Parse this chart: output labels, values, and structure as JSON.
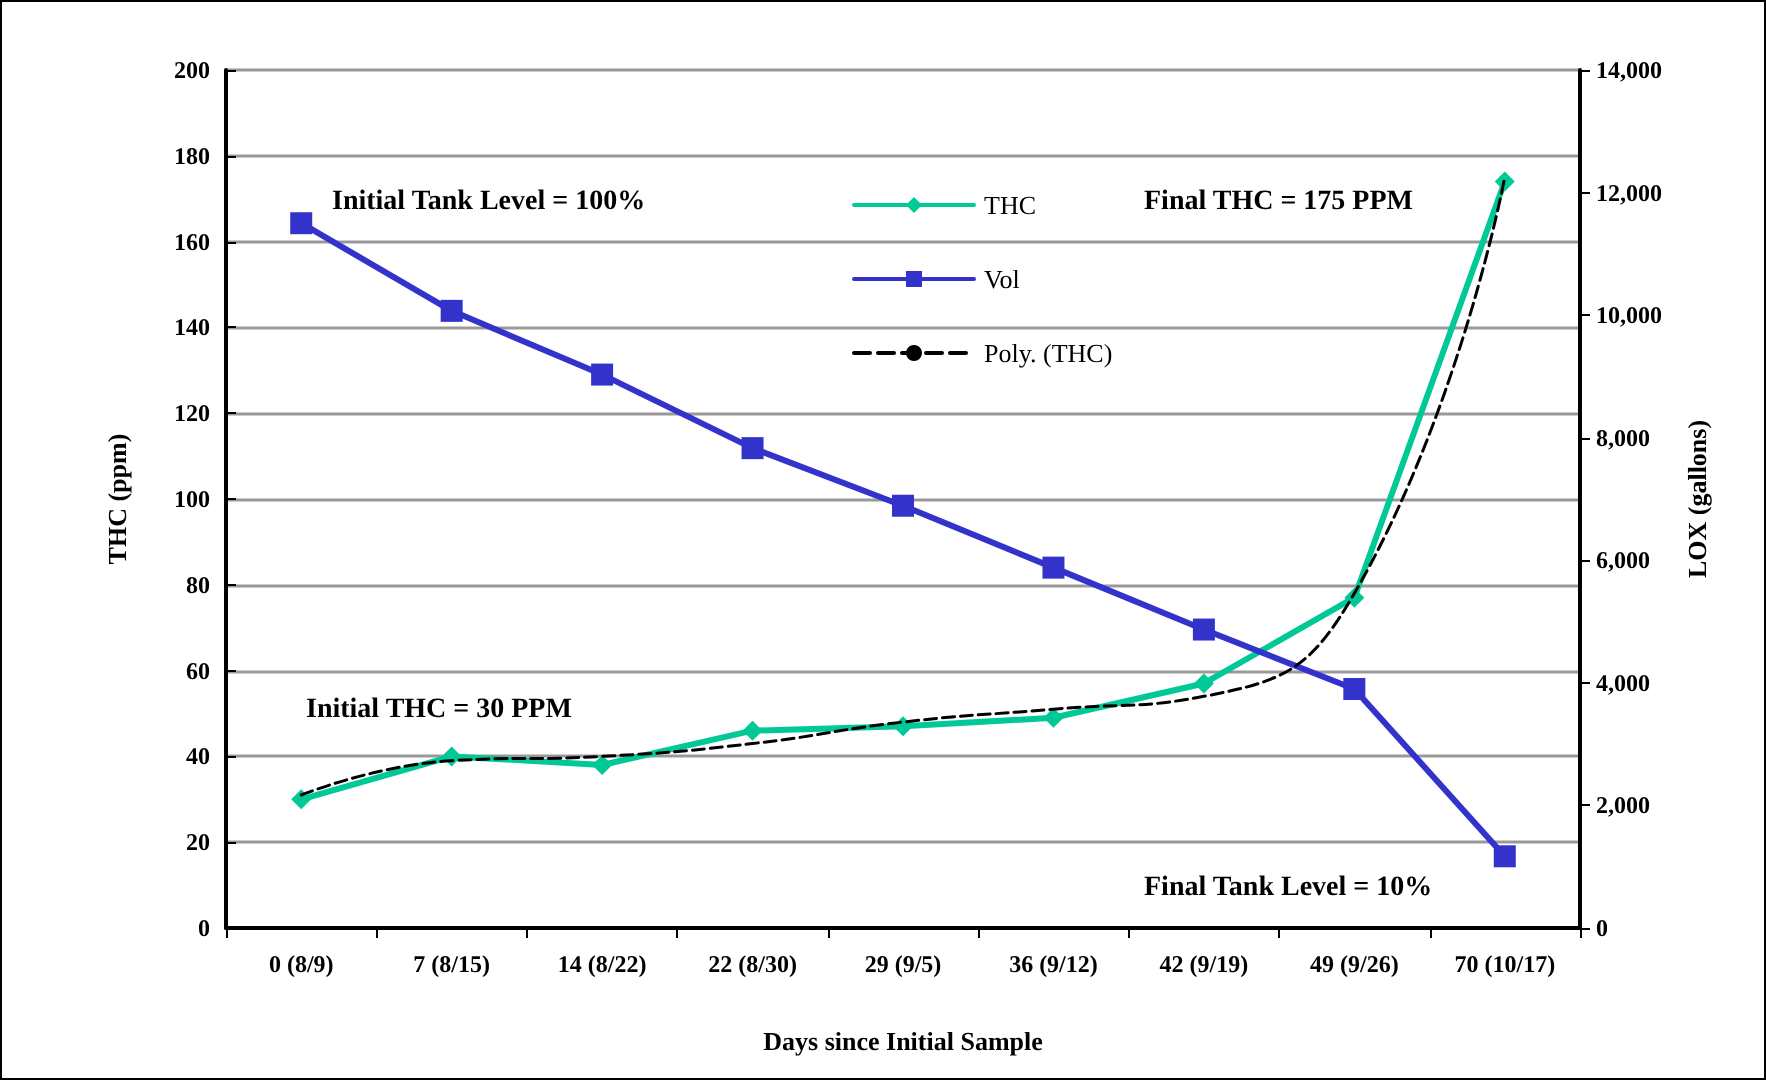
{
  "chart_data": {
    "type": "line",
    "xlabel": "Days since Initial Sample",
    "ylabel": "THC (ppm)",
    "y2label": "LOX (gallons)",
    "categories": [
      "0 (8/9)",
      "7 (8/15)",
      "14 (8/22)",
      "22 (8/30)",
      "29 (9/5)",
      "36 (9/12)",
      "42 (9/19)",
      "49 (9/26)",
      "70 (10/17)"
    ],
    "series": [
      {
        "name": "THC",
        "color": "#00c896",
        "marker": "diamond",
        "values": [
          30,
          40,
          38,
          46,
          47,
          49,
          57,
          77,
          174
        ]
      },
      {
        "name": "Vol",
        "color": "#3333cc",
        "marker": "square",
        "axis": "y2",
        "values": [
          11500,
          10070,
          9030,
          7830,
          6890,
          5880,
          4870,
          3900,
          1170
        ]
      },
      {
        "name": "Poly. (THC)",
        "color": "#000000",
        "marker": "none",
        "line_style": "dashed",
        "x": [
          "0 (8/9)",
          "7 (8/15)",
          "14 (8/22)",
          "22 (8/30)",
          "29 (9/5)",
          "36 (9/12)",
          "42 (9/19)",
          "49 (9/26)",
          "70 (10/17)"
        ],
        "values": [
          31,
          39,
          40,
          43,
          48,
          51,
          54,
          78,
          175
        ]
      }
    ],
    "ylim": [
      0,
      200
    ],
    "yticks": [
      0,
      20,
      40,
      60,
      80,
      100,
      120,
      140,
      160,
      180,
      200
    ],
    "y2lim": [
      0,
      14000
    ],
    "y2ticks": [
      {
        "value": 0,
        "label": "0"
      },
      {
        "value": 2000,
        "label": "2,000"
      },
      {
        "value": 4000,
        "label": "4,000"
      },
      {
        "value": 6000,
        "label": "6,000"
      },
      {
        "value": 8000,
        "label": "8,000"
      },
      {
        "value": 10000,
        "label": "10,000"
      },
      {
        "value": 12000,
        "label": "12,000"
      },
      {
        "value": 14000,
        "label": "14,000"
      }
    ],
    "grid": "y",
    "legend": "top",
    "annotations": [
      "Initial Tank Level = 100%",
      "Initial THC = 30 PPM",
      "Final THC = 175 PPM",
      "Final Tank Level = 10%"
    ]
  }
}
